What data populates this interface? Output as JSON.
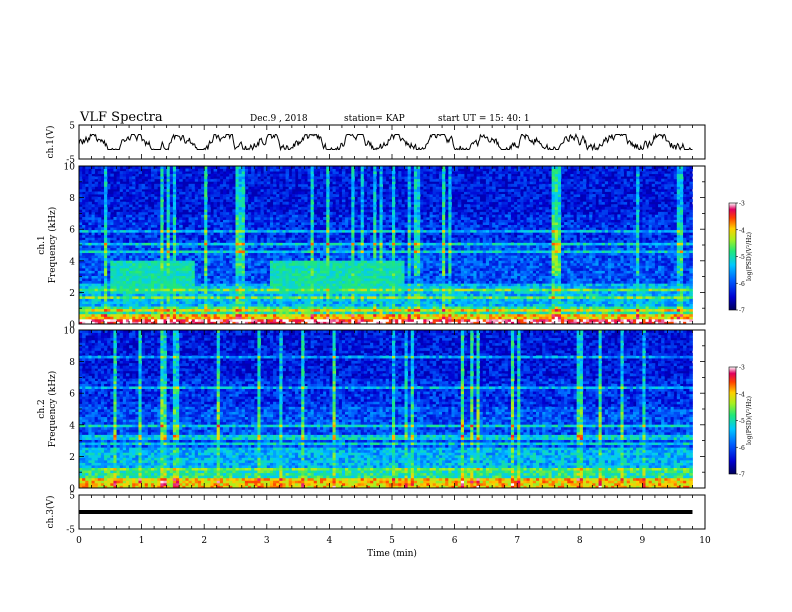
{
  "header": {
    "title": "VLF Spectra",
    "date": "Dec.9 , 2018",
    "station": "station= KAP",
    "start_ut": "start UT = 15: 40: 1"
  },
  "chart_data": [
    {
      "type": "line",
      "id": "ch1-waveform",
      "ylabel": "ch.1(V)",
      "ylim": [
        -5,
        5
      ],
      "yticks": [
        "5",
        "-5"
      ],
      "xlim": [
        0,
        10
      ],
      "note": "noisy voltage trace oscillating roughly between -2 and +2 V over ~9.8 min"
    },
    {
      "type": "heatmap",
      "id": "ch1-spectrogram",
      "ylabel": "ch.1\nFrequency (kHz)",
      "ylim": [
        0,
        10
      ],
      "yticks": [
        "0",
        "2",
        "4",
        "6",
        "8",
        "10"
      ],
      "xlim": [
        0,
        10
      ],
      "data_end_min": 9.8,
      "colorbar": {
        "label": "log(PSD)(V²/Hz)",
        "range": [
          -7,
          -3
        ],
        "ticks": [
          "-3",
          "-4",
          "-5",
          "-6",
          "-7"
        ]
      },
      "features": [
        {
          "start_min": 0.5,
          "end_min": 1.85,
          "freq_khz": [
            2.0,
            4.0
          ],
          "log_psd": -5.0
        },
        {
          "start_min": 3.05,
          "end_min": 5.2,
          "freq_khz": [
            2.0,
            4.0
          ],
          "log_psd": -5.0
        }
      ]
    },
    {
      "type": "heatmap",
      "id": "ch2-spectrogram",
      "ylabel": "ch.2\nFrequency (kHz)",
      "ylim": [
        0,
        10
      ],
      "yticks": [
        "0",
        "2",
        "4",
        "6",
        "8",
        "10"
      ],
      "xlim": [
        0,
        10
      ],
      "data_end_min": 9.8,
      "colorbar": {
        "label": "log(PSD)(V²/Hz)",
        "range": [
          -7,
          -3
        ],
        "ticks": [
          "-3",
          "-4",
          "-5",
          "-6",
          "-7"
        ]
      }
    },
    {
      "type": "line",
      "id": "ch3-waveform",
      "ylabel": "ch.3(V)",
      "ylim": [
        -5,
        5
      ],
      "yticks": [
        "5",
        "-5"
      ],
      "xlim": [
        0,
        10
      ],
      "xlabel": "Time (min)",
      "xticks": [
        "0",
        "1",
        "2",
        "3",
        "4",
        "5",
        "6",
        "7",
        "8",
        "9",
        "10"
      ],
      "constant_value": 0
    }
  ]
}
